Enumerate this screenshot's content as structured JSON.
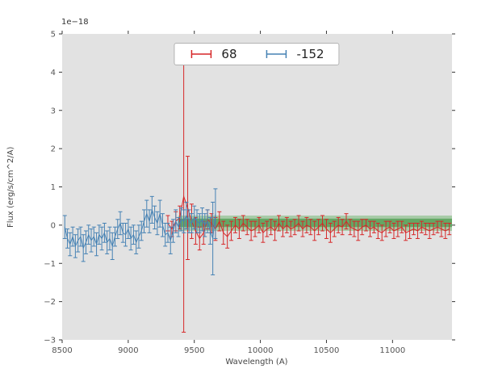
{
  "chart_data": {
    "type": "line",
    "title": "",
    "offset_text": "1e−18",
    "xlabel": "Wavelength (A)",
    "ylabel": "Flux (erg/s/cm^2/A)",
    "xlim": [
      8500,
      11450
    ],
    "ylim": [
      -3,
      5
    ],
    "xticks": [
      8500,
      9000,
      9500,
      10000,
      10500,
      11000
    ],
    "xticklabels": [
      "8500",
      "9000",
      "9500",
      "10000",
      "10500",
      "11000"
    ],
    "yticks": [
      -3,
      -2,
      -1,
      0,
      1,
      2,
      3,
      4,
      5
    ],
    "yticklabels": [
      "−3",
      "−2",
      "−1",
      "0",
      "1",
      "2",
      "3",
      "4",
      "5"
    ],
    "grid": false,
    "legend_position": "upper center",
    "background_color": "#e2e2e2",
    "bands": [
      {
        "x0": 9380,
        "x1": 11450,
        "y0": -0.15,
        "y1": 0.25,
        "color": "#38a038",
        "alpha": 0.35
      },
      {
        "x0": 9380,
        "x1": 11450,
        "y0": -0.05,
        "y1": 0.17,
        "color": "#2e8b2e",
        "alpha": 0.55
      }
    ],
    "series": [
      {
        "name": "68",
        "color": "#d62728",
        "x": [
          9300,
          9330,
          9360,
          9390,
          9420,
          9450,
          9480,
          9510,
          9540,
          9570,
          9600,
          9630,
          9660,
          9690,
          9720,
          9750,
          9780,
          9810,
          9840,
          9870,
          9900,
          9930,
          9960,
          9990,
          10020,
          10050,
          10080,
          10110,
          10140,
          10170,
          10200,
          10230,
          10260,
          10290,
          10320,
          10350,
          10380,
          10410,
          10440,
          10470,
          10500,
          10530,
          10560,
          10590,
          10620,
          10650,
          10680,
          10710,
          10740,
          10770,
          10800,
          10830,
          10860,
          10890,
          10920,
          10950,
          10980,
          11010,
          11040,
          11070,
          11100,
          11130,
          11160,
          11190,
          11220,
          11250,
          11280,
          11310,
          11340,
          11370,
          11400,
          11430
        ],
        "y": [
          0.05,
          -0.1,
          0.1,
          0.2,
          0.75,
          0.45,
          0.1,
          -0.15,
          -0.35,
          -0.2,
          0.15,
          0.05,
          -0.1,
          0.1,
          -0.2,
          -0.3,
          -0.15,
          0.0,
          -0.1,
          0.05,
          -0.05,
          -0.15,
          -0.1,
          0.0,
          -0.2,
          -0.1,
          -0.05,
          -0.15,
          0.05,
          -0.1,
          0.0,
          -0.1,
          -0.05,
          0.05,
          -0.1,
          0.0,
          -0.05,
          -0.15,
          -0.05,
          0.05,
          -0.1,
          -0.2,
          -0.1,
          0.0,
          -0.05,
          0.1,
          -0.05,
          -0.1,
          -0.15,
          -0.05,
          0.0,
          -0.1,
          -0.05,
          -0.15,
          -0.2,
          -0.1,
          -0.05,
          -0.15,
          -0.1,
          -0.05,
          -0.2,
          -0.15,
          -0.1,
          -0.15,
          -0.05,
          -0.1,
          -0.15,
          -0.1,
          -0.05,
          -0.1,
          -0.15,
          -0.1
        ],
        "yerr": [
          0.2,
          0.2,
          0.25,
          0.3,
          3.55,
          1.35,
          0.45,
          0.35,
          0.3,
          0.3,
          0.25,
          0.25,
          0.3,
          0.25,
          0.3,
          0.3,
          0.25,
          0.2,
          0.25,
          0.2,
          0.2,
          0.25,
          0.2,
          0.2,
          0.25,
          0.2,
          0.2,
          0.25,
          0.2,
          0.2,
          0.2,
          0.2,
          0.2,
          0.2,
          0.2,
          0.2,
          0.2,
          0.25,
          0.2,
          0.2,
          0.25,
          0.25,
          0.2,
          0.2,
          0.2,
          0.2,
          0.2,
          0.2,
          0.25,
          0.2,
          0.15,
          0.2,
          0.15,
          0.2,
          0.2,
          0.2,
          0.15,
          0.2,
          0.2,
          0.15,
          0.2,
          0.2,
          0.15,
          0.2,
          0.15,
          0.15,
          0.2,
          0.15,
          0.15,
          0.2,
          0.2,
          0.15
        ]
      },
      {
        "name": "-152",
        "color": "#4682b4",
        "x": [
          8520,
          8540,
          8560,
          8580,
          8600,
          8620,
          8640,
          8660,
          8680,
          8700,
          8720,
          8740,
          8760,
          8780,
          8800,
          8820,
          8840,
          8860,
          8880,
          8900,
          8920,
          8940,
          8960,
          8980,
          9000,
          9020,
          9040,
          9060,
          9080,
          9100,
          9120,
          9140,
          9160,
          9180,
          9200,
          9220,
          9240,
          9260,
          9280,
          9300,
          9320,
          9340,
          9360,
          9380,
          9400,
          9420,
          9440,
          9460,
          9480,
          9500,
          9520,
          9540,
          9560,
          9580,
          9600,
          9620,
          9640,
          9660
        ],
        "y": [
          -0.05,
          -0.35,
          -0.5,
          -0.3,
          -0.55,
          -0.4,
          -0.3,
          -0.6,
          -0.45,
          -0.25,
          -0.4,
          -0.3,
          -0.5,
          -0.25,
          -0.35,
          -0.2,
          -0.45,
          -0.35,
          -0.55,
          -0.3,
          -0.1,
          0.05,
          -0.2,
          -0.25,
          -0.1,
          -0.35,
          -0.25,
          -0.45,
          -0.3,
          -0.15,
          0.1,
          0.3,
          0.1,
          0.4,
          0.2,
          0.05,
          0.3,
          0.0,
          -0.25,
          -0.2,
          -0.4,
          -0.15,
          0.1,
          -0.05,
          0.15,
          0.1,
          0.25,
          0.1,
          0.05,
          0.2,
          0.1,
          0.05,
          0.15,
          0.0,
          0.1,
          -0.15,
          -0.35,
          0.3
        ],
        "yerr": [
          0.3,
          0.25,
          0.3,
          0.25,
          0.3,
          0.3,
          0.25,
          0.35,
          0.3,
          0.25,
          0.3,
          0.25,
          0.3,
          0.25,
          0.3,
          0.25,
          0.3,
          0.3,
          0.35,
          0.25,
          0.25,
          0.3,
          0.25,
          0.3,
          0.25,
          0.3,
          0.25,
          0.3,
          0.3,
          0.25,
          0.3,
          0.35,
          0.3,
          0.35,
          0.3,
          0.3,
          0.35,
          0.3,
          0.3,
          0.25,
          0.35,
          0.3,
          0.3,
          0.25,
          0.3,
          0.3,
          0.35,
          0.3,
          0.25,
          0.3,
          0.3,
          0.25,
          0.3,
          0.3,
          0.3,
          0.35,
          0.95,
          0.65
        ]
      }
    ]
  }
}
